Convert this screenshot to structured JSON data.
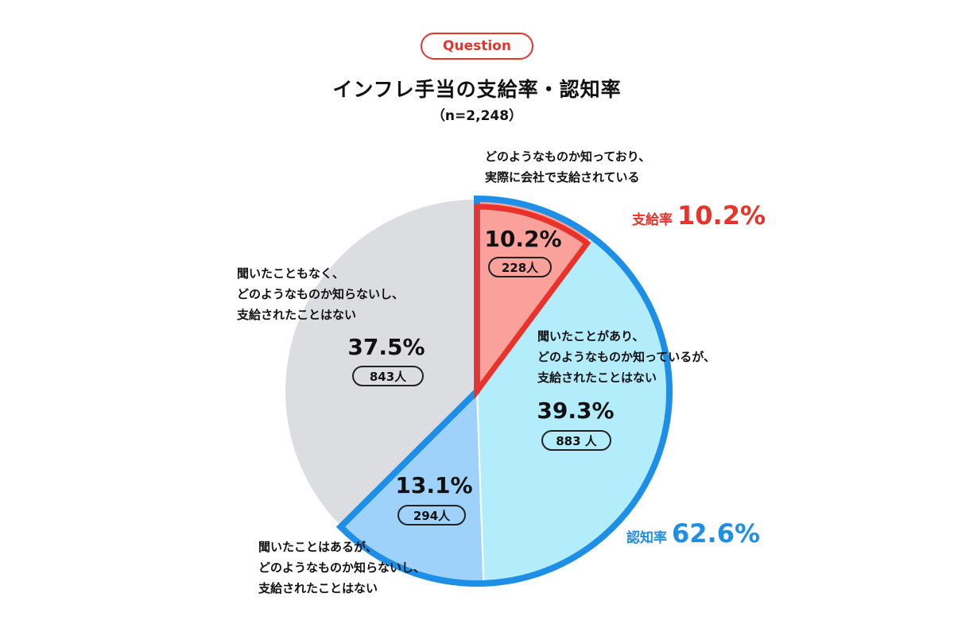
{
  "question_label": "Question",
  "title": "インフレ手当の支給率・認知率",
  "sample_size": "（n=2,248）",
  "chart_data": {
    "type": "pie",
    "title": "インフレ手当の支給率・認知率",
    "subtitle": "（n=2,248）",
    "slices": [
      {
        "label": "どのようなものか知っており、実際に会社で支給されている",
        "lines": [
          "どのようなものか知っており、",
          "実際に会社で支給されている"
        ],
        "value": 10.2,
        "percent_label": "10.2%",
        "count": 228,
        "count_label": "228人",
        "color": "#f9a19a"
      },
      {
        "label": "聞いたことがあり、どのようなものか知っているが、支給されたことはない",
        "lines": [
          "聞いたことがあり、",
          "どのようなものか知っているが、",
          "支給されたことはない"
        ],
        "value": 39.3,
        "percent_label": "39.3%",
        "count": 883,
        "count_label": "883 人",
        "color": "#b3ecfa"
      },
      {
        "label": "聞いたことはあるが、どのようなものか知らないし、支給されたことはない",
        "lines": [
          "聞いたことはあるが、",
          "どのようなものか知らないし、",
          "支給されたことはない"
        ],
        "value": 13.1,
        "percent_label": "13.1%",
        "count": 294,
        "count_label": "294人",
        "color": "#9fd2fb"
      },
      {
        "label": "聞いたこともなく、どのようなものか知らないし、支給されたことはない",
        "lines": [
          "聞いたこともなく、",
          "どのようなものか知らないし、",
          "支給されたことはない"
        ],
        "value": 37.5,
        "percent_label": "37.5%",
        "count": 843,
        "count_label": "843人",
        "color": "#dcdde1"
      }
    ],
    "highlights": [
      {
        "label": "支給率",
        "value": 10.2,
        "value_label": "10.2%",
        "color": "#e8322a"
      },
      {
        "label": "認知率",
        "value": 62.6,
        "value_label": "62.6%",
        "color": "#1e8fe6"
      }
    ]
  }
}
